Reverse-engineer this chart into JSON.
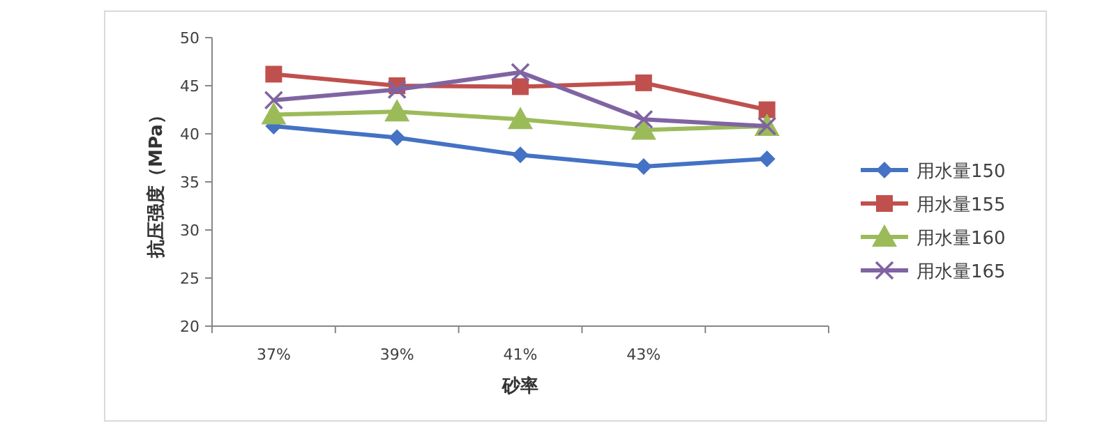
{
  "chart_data": {
    "type": "line",
    "xlabel": "砂率",
    "ylabel": "抗压强度（MPa）",
    "categories": [
      "37%",
      "39%",
      "41%",
      "43%",
      null
    ],
    "ylim": [
      20,
      50
    ],
    "yticks": [
      20,
      25,
      30,
      35,
      40,
      45,
      50
    ],
    "grid": false,
    "legend": "right",
    "series": [
      {
        "name": "用水量150",
        "color": "#4472c4",
        "marker": "diamond",
        "values": [
          40.8,
          39.6,
          37.8,
          36.6,
          37.4
        ]
      },
      {
        "name": "用水量155",
        "color": "#c0504d",
        "marker": "square",
        "values": [
          46.2,
          45.0,
          44.9,
          45.3,
          42.5
        ]
      },
      {
        "name": "用水量160",
        "color": "#9bbb59",
        "marker": "triangle",
        "values": [
          42.0,
          42.3,
          41.5,
          40.4,
          40.8
        ]
      },
      {
        "name": "用水量165",
        "color": "#8064a2",
        "marker": "cross",
        "values": [
          43.5,
          44.6,
          46.4,
          41.5,
          40.8
        ]
      }
    ]
  }
}
